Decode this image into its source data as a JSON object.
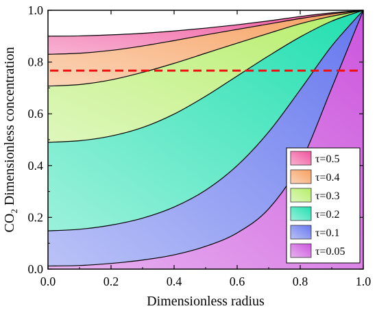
{
  "chart_data": {
    "type": "area",
    "xlabel": "Dimensionless radius",
    "ylabel": "Dimensionless concentration",
    "ylabel_prefix": "CO",
    "ylabel_subscript": "2",
    "xlim": [
      0,
      1
    ],
    "ylim": [
      0,
      1
    ],
    "xticks": [
      "0.0",
      "0.2",
      "0.4",
      "0.6",
      "0.8",
      "1.0"
    ],
    "yticks": [
      "0.0",
      "0.2",
      "0.4",
      "0.6",
      "0.8",
      "1.0"
    ],
    "x": [
      0,
      0.1,
      0.2,
      0.3,
      0.4,
      0.5,
      0.6,
      0.7,
      0.8,
      0.9,
      1.0
    ],
    "series": [
      {
        "name": "τ=0.5",
        "color": "#f0549c",
        "values": [
          0.9,
          0.901,
          0.905,
          0.911,
          0.92,
          0.931,
          0.944,
          0.959,
          0.976,
          0.99,
          1.0
        ]
      },
      {
        "name": "τ=0.4",
        "color": "#f7a060",
        "values": [
          0.83,
          0.834,
          0.845,
          0.862,
          0.883,
          0.905,
          0.926,
          0.947,
          0.968,
          0.986,
          1.0
        ]
      },
      {
        "name": "τ=0.3",
        "color": "#b6ee6a",
        "values": [
          0.707,
          0.713,
          0.731,
          0.76,
          0.795,
          0.834,
          0.873,
          0.911,
          0.948,
          0.977,
          1.0
        ]
      },
      {
        "name": "τ=0.2",
        "color": "#21dfb0",
        "values": [
          0.49,
          0.496,
          0.514,
          0.547,
          0.599,
          0.668,
          0.746,
          0.824,
          0.897,
          0.958,
          1.0
        ]
      },
      {
        "name": "τ=0.1",
        "color": "#6677ee",
        "values": [
          0.148,
          0.154,
          0.17,
          0.197,
          0.24,
          0.305,
          0.4,
          0.53,
          0.693,
          0.862,
          1.0
        ]
      },
      {
        "name": "τ=0.05",
        "color": "#cc55dd",
        "values": [
          0.012,
          0.014,
          0.022,
          0.035,
          0.055,
          0.088,
          0.14,
          0.233,
          0.41,
          0.7,
          1.0
        ]
      }
    ],
    "reference_line": {
      "y": 0.767,
      "color": "#ee1111",
      "style": "dashed"
    },
    "legend_position": "lower-right",
    "grid": false
  }
}
